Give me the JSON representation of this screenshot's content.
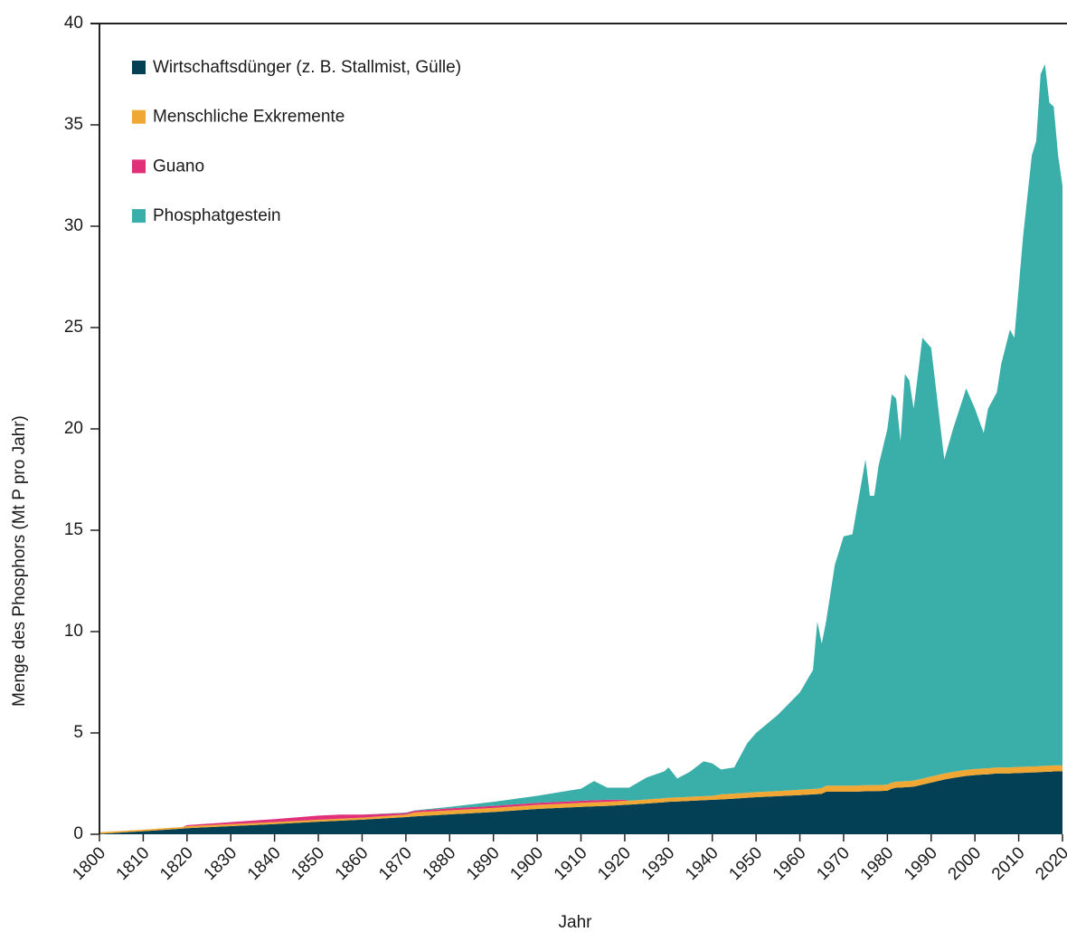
{
  "chart_data": {
    "type": "stacked_area",
    "x_label": "Jahr",
    "y_label": "Menge des Phosphors (Mt P pro Jahr)",
    "legend": "upper left",
    "xlim": [
      1800,
      2020
    ],
    "ylim": [
      0,
      40
    ],
    "xticks": [
      1800,
      1810,
      1820,
      1830,
      1840,
      1850,
      1860,
      1870,
      1880,
      1890,
      1900,
      1910,
      1920,
      1930,
      1940,
      1950,
      1960,
      1970,
      1980,
      1990,
      2000,
      2010,
      2020
    ],
    "yticks": [
      0,
      5,
      10,
      15,
      20,
      25,
      30,
      35,
      40
    ],
    "x": [
      1800,
      1810,
      1819,
      1820,
      1830,
      1840,
      1850,
      1855,
      1860,
      1870,
      1872,
      1880,
      1890,
      1900,
      1910,
      1913,
      1916,
      1920,
      1921,
      1925,
      1929,
      1930,
      1932,
      1935,
      1938,
      1940,
      1942,
      1945,
      1948,
      1950,
      1955,
      1960,
      1963,
      1964,
      1965,
      1966,
      1968,
      1970,
      1972,
      1975,
      1976,
      1977,
      1978,
      1980,
      1981,
      1982,
      1983,
      1984,
      1985,
      1986,
      1988,
      1990,
      1993,
      1995,
      1998,
      2000,
      2002,
      2003,
      2005,
      2006,
      2008,
      2009,
      2011,
      2013,
      2014,
      2015,
      2016,
      2017,
      2018,
      2019,
      2020
    ],
    "series": [
      {
        "name": "Wirtschaftsdünger (z. B. Stallmist, Gülle)",
        "color": "#033f55",
        "values": [
          0.02,
          0.15,
          0.28,
          0.3,
          0.4,
          0.5,
          0.62,
          0.67,
          0.72,
          0.85,
          0.88,
          0.98,
          1.1,
          1.25,
          1.35,
          1.38,
          1.4,
          1.45,
          1.46,
          1.52,
          1.58,
          1.6,
          1.62,
          1.65,
          1.68,
          1.7,
          1.72,
          1.76,
          1.8,
          1.83,
          1.88,
          1.93,
          1.97,
          1.98,
          2.0,
          2.1,
          2.1,
          2.1,
          2.1,
          2.12,
          2.12,
          2.13,
          2.13,
          2.15,
          2.25,
          2.3,
          2.3,
          2.32,
          2.33,
          2.35,
          2.45,
          2.55,
          2.7,
          2.78,
          2.88,
          2.92,
          2.95,
          2.96,
          3.0,
          3.0,
          3.0,
          3.02,
          3.03,
          3.05,
          3.05,
          3.07,
          3.08,
          3.08,
          3.1,
          3.1,
          3.1
        ]
      },
      {
        "name": "Menschliche Exkremente",
        "color": "#f0a733",
        "values": [
          0.08,
          0.08,
          0.08,
          0.1,
          0.1,
          0.1,
          0.1,
          0.1,
          0.1,
          0.12,
          0.2,
          0.2,
          0.2,
          0.2,
          0.2,
          0.2,
          0.2,
          0.2,
          0.2,
          0.2,
          0.2,
          0.2,
          0.2,
          0.2,
          0.2,
          0.2,
          0.25,
          0.25,
          0.25,
          0.25,
          0.25,
          0.27,
          0.27,
          0.27,
          0.28,
          0.3,
          0.3,
          0.3,
          0.3,
          0.3,
          0.3,
          0.3,
          0.3,
          0.3,
          0.3,
          0.3,
          0.3,
          0.3,
          0.3,
          0.3,
          0.3,
          0.3,
          0.3,
          0.3,
          0.3,
          0.3,
          0.3,
          0.3,
          0.3,
          0.3,
          0.3,
          0.3,
          0.3,
          0.3,
          0.3,
          0.3,
          0.3,
          0.3,
          0.3,
          0.3,
          0.3
        ]
      },
      {
        "name": "Guano",
        "color": "#e0307a",
        "values": [
          0,
          0,
          0,
          0.05,
          0.1,
          0.15,
          0.2,
          0.2,
          0.15,
          0.08,
          0.08,
          0.1,
          0.1,
          0.1,
          0.1,
          0.1,
          0.1,
          0.05,
          0,
          0,
          0,
          0,
          0,
          0,
          0,
          0,
          0,
          0,
          0,
          0,
          0,
          0,
          0,
          0,
          0,
          0,
          0,
          0,
          0,
          0,
          0,
          0,
          0,
          0,
          0,
          0,
          0,
          0,
          0,
          0,
          0,
          0,
          0,
          0,
          0,
          0,
          0,
          0,
          0,
          0,
          0,
          0,
          0,
          0,
          0,
          0,
          0,
          0,
          0,
          0,
          0
        ]
      },
      {
        "name": "Phosphatgestein",
        "color": "#3aafa9",
        "values": [
          0,
          0,
          0,
          0,
          0,
          0,
          0,
          0,
          0,
          0.02,
          0.02,
          0.07,
          0.2,
          0.35,
          0.6,
          0.95,
          0.6,
          0.6,
          0.64,
          1.08,
          1.32,
          1.5,
          0.93,
          1.25,
          1.72,
          1.6,
          1.23,
          1.29,
          2.45,
          2.92,
          3.77,
          4.8,
          5.86,
          8.25,
          7.12,
          8.1,
          10.9,
          12.3,
          12.4,
          16.08,
          14.28,
          14.27,
          15.77,
          17.55,
          19.15,
          18.9,
          16.8,
          20.08,
          19.77,
          18.35,
          21.75,
          21.15,
          15.5,
          16.92,
          18.82,
          17.78,
          16.55,
          17.74,
          18.5,
          19.9,
          21.6,
          21.18,
          26.17,
          30.15,
          30.85,
          34.13,
          34.62,
          32.72,
          32.5,
          30.1,
          28.6
        ]
      }
    ]
  }
}
